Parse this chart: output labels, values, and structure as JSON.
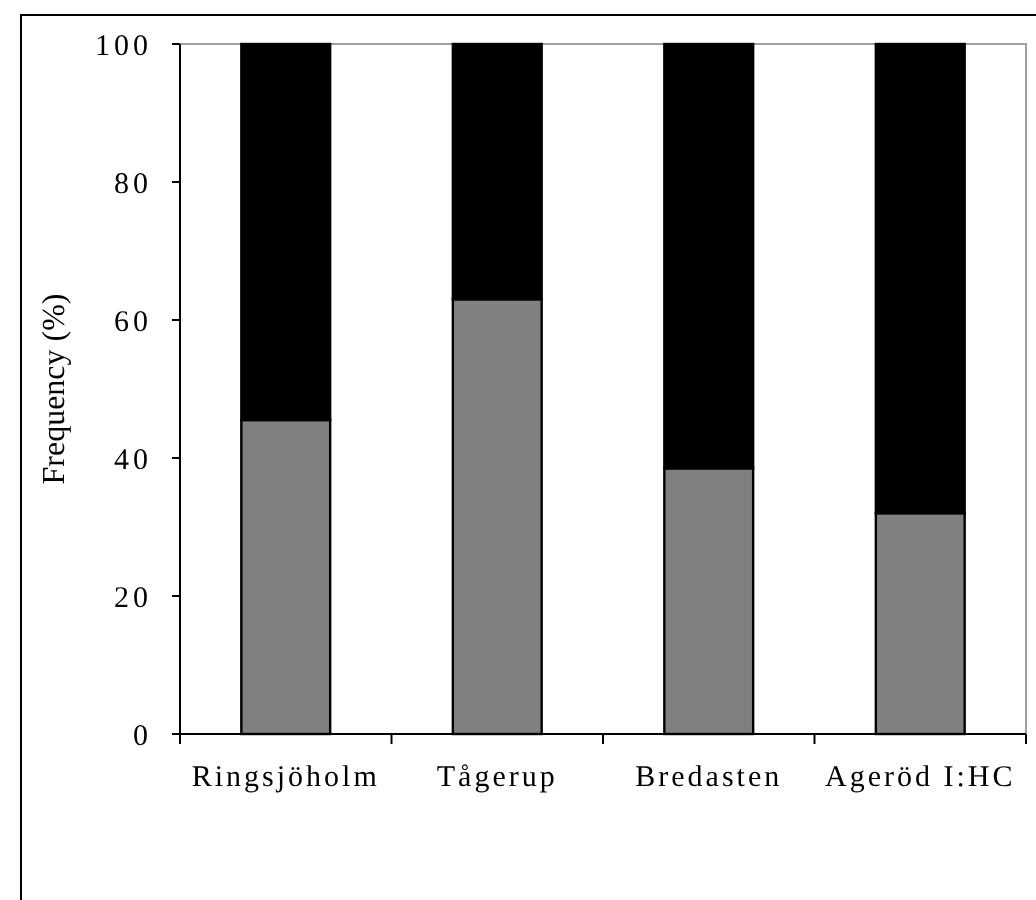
{
  "chart_data": {
    "type": "bar",
    "stacked": true,
    "ylabel": "Frequency (%)",
    "categories": [
      "Ringsjöholm",
      "Tågerup",
      "Bredasten",
      "Ageröd I:HC"
    ],
    "series": [
      {
        "color": "#808080",
        "values": [
          45.5,
          63,
          38.5,
          32
        ]
      },
      {
        "color": "#000000",
        "values": [
          54.5,
          37,
          61.5,
          68
        ]
      }
    ],
    "ylim": [
      0,
      100
    ],
    "yticks": [
      0,
      20,
      40,
      60,
      80,
      100
    ],
    "grid": false
  }
}
